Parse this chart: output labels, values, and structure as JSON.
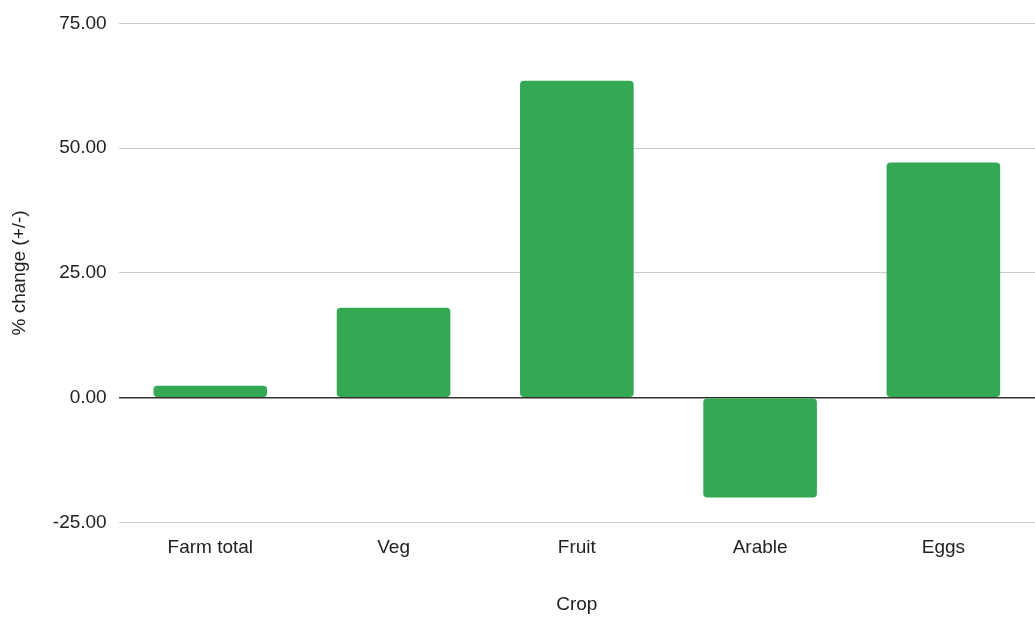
{
  "chart_data": {
    "type": "bar",
    "xlabel": "Crop",
    "ylabel": "% change (+/-)",
    "categories": [
      "Farm total",
      "Veg",
      "Fruit",
      "Arable",
      "Eggs"
    ],
    "values": [
      2.4,
      18,
      63.5,
      -20,
      47.1
    ],
    "color": "#34a853",
    "ylim": [
      -25,
      75
    ],
    "yticks": [
      {
        "value": -25,
        "label": "-25.00"
      },
      {
        "value": 0,
        "label": "0.00"
      },
      {
        "value": 25,
        "label": "25.00"
      },
      {
        "value": 50,
        "label": "50.00"
      },
      {
        "value": 75,
        "label": "75.00"
      }
    ],
    "grid": "y",
    "legend": false
  }
}
